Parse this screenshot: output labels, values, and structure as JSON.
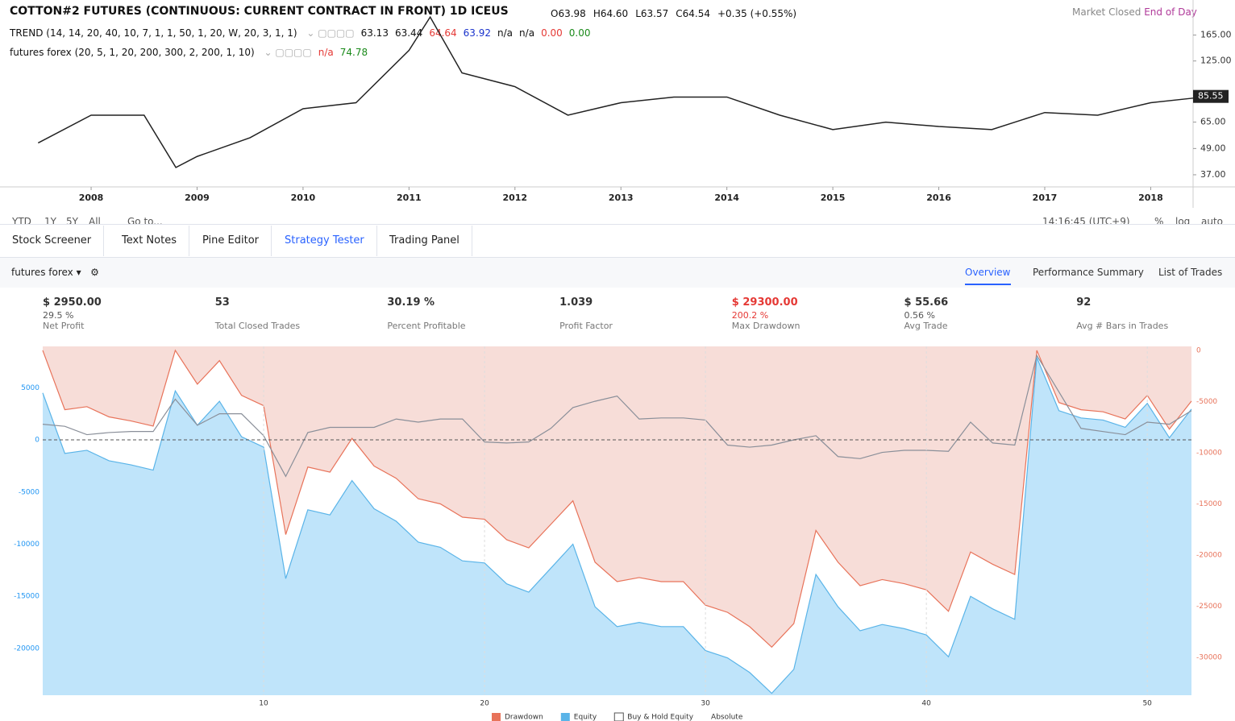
{
  "header": {
    "symbol": "COTTON#2 FUTURES (CONTINUOUS: CURRENT CONTRACT IN FRONT)",
    "interval": "1D",
    "exchange": "ICEUS",
    "ohlc": [
      "O63.98",
      "H64.60",
      "L63.57",
      "C64.54",
      "+0.35 (+0.55%)"
    ],
    "status": "Market Closed",
    "data_mode": "End of Day"
  },
  "indicators": [
    {
      "label": "TREND (14, 14, 20, 40, 10, 7, 1, 1, 50, 1, 20, W, 20, 3, 1, 1)",
      "values": [
        {
          "text": "63.13",
          "color": "#111"
        },
        {
          "text": "63.44",
          "color": "#111"
        },
        {
          "text": "64.64",
          "color": "#e53935"
        },
        {
          "text": "63.92",
          "color": "#1a33cc"
        },
        {
          "text": "n/a",
          "color": "#111"
        },
        {
          "text": "n/a",
          "color": "#111"
        },
        {
          "text": "0.00",
          "color": "#e53935"
        },
        {
          "text": "0.00",
          "color": "#1b8a1b"
        }
      ]
    },
    {
      "label": "futures forex (20, 5, 1, 20, 200, 300, 2, 200, 1, 10)",
      "values": [
        {
          "text": "n/a",
          "color": "#e53935"
        },
        {
          "text": "74.78",
          "color": "#1b8a1b"
        }
      ]
    }
  ],
  "range_bar": [
    "YTD",
    "1Y",
    "5Y",
    "All",
    "Go to...",
    "14:16:45 (UTC+9)",
    "%",
    "log",
    "auto"
  ],
  "tabs": [
    "Stock Screener",
    "Text Notes",
    "Pine Editor",
    "Strategy Tester",
    "Trading Panel"
  ],
  "strategy": {
    "name": "futures forex",
    "views": [
      "Overview",
      "Performance Summary",
      "List of Trades"
    ]
  },
  "stats": [
    {
      "value": "$ 2950.00",
      "sub": "29.5 %",
      "label": "Net Profit"
    },
    {
      "value": "53",
      "sub": "",
      "label": "Total Closed Trades"
    },
    {
      "value": "30.19 %",
      "sub": "",
      "label": "Percent Profitable"
    },
    {
      "value": "1.039",
      "sub": "",
      "label": "Profit Factor"
    },
    {
      "value": "$ 29300.00",
      "sub": "200.2 %",
      "label": "Max Drawdown"
    },
    {
      "value": "$ 55.66",
      "sub": "0.56 %",
      "label": "Avg Trade"
    },
    {
      "value": "92",
      "sub": "",
      "label": "Avg # Bars in Trades"
    }
  ],
  "legend_mode": "Absolute",
  "chart_data": [
    {
      "type": "line",
      "log_scale": true,
      "color": "#222",
      "x": [
        2007.5,
        2008.0,
        2008.5,
        2008.8,
        2009.0,
        2009.5,
        2010.0,
        2010.5,
        2011.0,
        2011.2,
        2011.5,
        2012.0,
        2012.5,
        2013.0,
        2013.5,
        2014.0,
        2014.5,
        2015.0,
        2015.5,
        2016.0,
        2016.5,
        2017.0,
        2017.5,
        2018.0,
        2018.4
      ],
      "values": [
        52,
        70,
        70,
        40,
        45,
        55,
        75,
        80,
        140,
        200,
        110,
        95,
        70,
        80,
        85,
        85,
        70,
        60,
        65,
        62,
        60,
        72,
        70,
        80,
        84
      ],
      "xlim": [
        2007.14,
        2018.4
      ],
      "xticks": [
        2008,
        2009,
        2010,
        2011,
        2012,
        2013,
        2014,
        2015,
        2016,
        2017,
        2018
      ],
      "ylim": [
        32.5,
        240
      ],
      "yticks": [
        {
          "value": 37,
          "label": "37.00"
        },
        {
          "value": 49,
          "label": "49.00"
        },
        {
          "value": 65,
          "label": "65.00"
        },
        {
          "value": 125,
          "label": "125.00"
        },
        {
          "value": 165,
          "label": "165.00"
        }
      ],
      "last_price": 85.55
    },
    {
      "type": "area",
      "x": [
        0,
        1,
        2,
        3,
        4,
        5,
        6,
        7,
        8,
        9,
        10,
        11,
        12,
        13,
        14,
        15,
        16,
        17,
        18,
        19,
        20,
        21,
        22,
        23,
        24,
        25,
        26,
        27,
        28,
        29,
        30,
        31,
        32,
        33,
        34,
        35,
        36,
        37,
        38,
        39,
        40,
        41,
        42,
        43,
        44,
        45,
        46,
        47,
        48,
        49,
        50,
        51,
        52
      ],
      "xlim": [
        0,
        52
      ],
      "xticks": [
        10,
        20,
        30,
        40,
        50
      ],
      "ylim": [
        -24480,
        8960
      ],
      "yticks": [
        5000,
        0,
        -5000,
        -10000,
        -15000,
        -20000
      ],
      "y2lim": [
        -33700,
        390
      ],
      "y2ticks": [
        0,
        -5000,
        -10000,
        -15000,
        -20000,
        -25000,
        -30000
      ],
      "series": [
        {
          "name": "Drawdown",
          "axis": "y2",
          "color": "#e8735a",
          "fill": "#f7ddd8",
          "values": [
            0,
            -5800,
            -5500,
            -6500,
            -6900,
            -7400,
            0,
            -3300,
            -1000,
            -4400,
            -5400,
            -18000,
            -11400,
            -11900,
            -8600,
            -11300,
            -12500,
            -14500,
            -15000,
            -16300,
            -16500,
            -18500,
            -19300,
            -17000,
            -14700,
            -20700,
            -22600,
            -22200,
            -22600,
            -22600,
            -24900,
            -25600,
            -27000,
            -29000,
            -26700,
            -17600,
            -20700,
            -23000,
            -22400,
            -22800,
            -23400,
            -25500,
            -19700,
            -20900,
            -21900,
            0,
            -5100,
            -5800,
            -6000,
            -6700,
            -4400,
            -7700,
            -4950
          ]
        },
        {
          "name": "Equity",
          "color": "#5ab4e8",
          "fill": "#bfe4fa",
          "values": [
            4500,
            -1300,
            -1000,
            -2000,
            -2400,
            -2900,
            4700,
            1400,
            3700,
            300,
            -700,
            -13300,
            -6700,
            -7200,
            -3900,
            -6600,
            -7800,
            -9800,
            -10300,
            -11600,
            -11800,
            -13800,
            -14600,
            -12300,
            -10000,
            -16000,
            -17900,
            -17500,
            -17900,
            -17900,
            -20200,
            -20900,
            -22300,
            -24300,
            -22000,
            -12900,
            -16000,
            -18300,
            -17700,
            -18100,
            -18700,
            -20800,
            -15000,
            -16200,
            -17200,
            7900,
            2800,
            2100,
            1900,
            1200,
            3500,
            200,
            2950
          ]
        },
        {
          "name": "Buy & Hold Equity",
          "color": "#8a8f99",
          "fill": "#ffffff",
          "values": [
            1500,
            1300,
            500,
            700,
            800,
            800,
            3900,
            1400,
            2500,
            2500,
            400,
            -3500,
            700,
            1200,
            1200,
            1200,
            2000,
            1700,
            2000,
            2000,
            -200,
            -300,
            -200,
            1100,
            3100,
            3700,
            4200,
            2000,
            2100,
            2100,
            1900,
            -500,
            -700,
            -500,
            0,
            400,
            -1600,
            -1800,
            -1200,
            -1000,
            -1000,
            -1100,
            1700,
            -300,
            -500,
            8100,
            4600,
            1100,
            800,
            500,
            1700,
            1500,
            2800
          ]
        }
      ]
    }
  ]
}
